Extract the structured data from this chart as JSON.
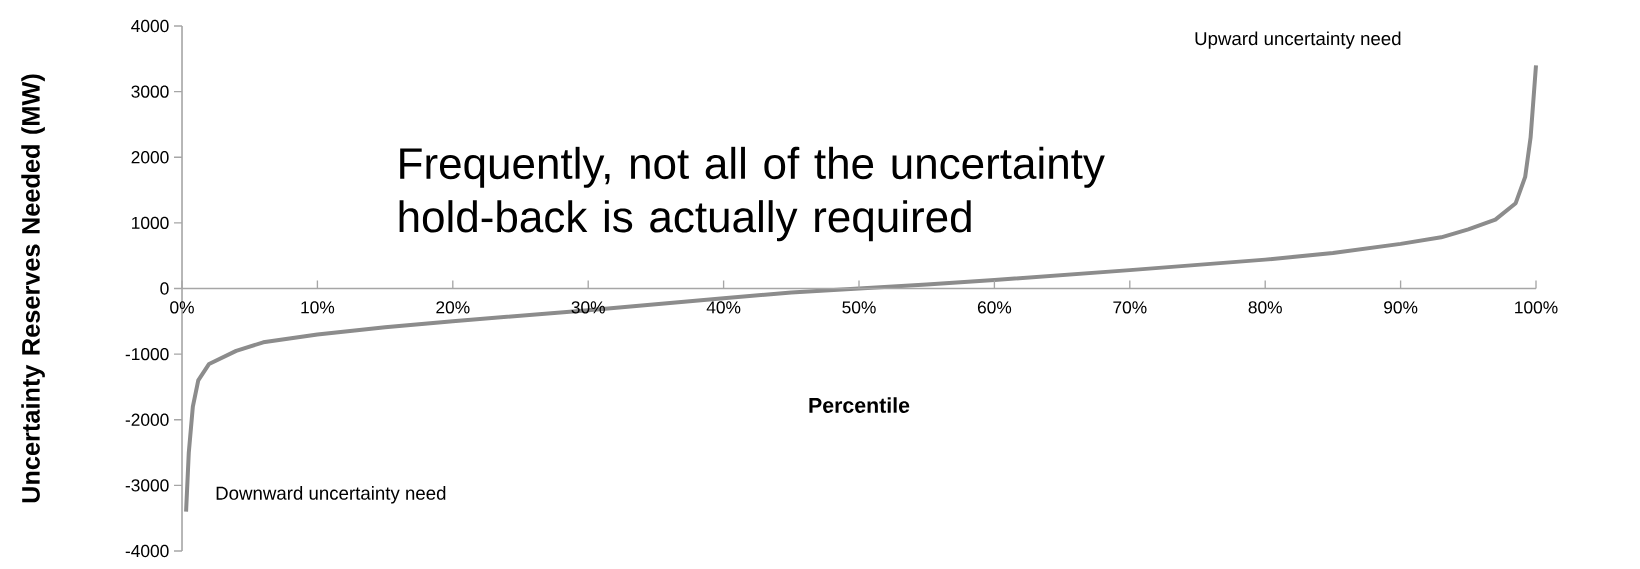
{
  "chart_data": {
    "type": "line",
    "xlabel": "Percentile",
    "ylabel": "Uncertainty Reserves Needed (MW)",
    "annotations": [
      "Frequently, not all of the uncertainty hold-back is actually required",
      "Upward uncertainty need",
      "Downward uncertainty need"
    ],
    "x": [
      0.3,
      0.5,
      0.8,
      1.2,
      2,
      4,
      6,
      10,
      15,
      20,
      30,
      40,
      45,
      50,
      55,
      60,
      70,
      80,
      85,
      90,
      93,
      95,
      97,
      98.5,
      99.2,
      99.6,
      100
    ],
    "series": [
      {
        "color": "#8c8c8c",
        "values": [
          -3400,
          -2500,
          -1800,
          -1400,
          -1150,
          -950,
          -820,
          -700,
          -590,
          -500,
          -330,
          -150,
          -60,
          0,
          60,
          130,
          280,
          440,
          540,
          680,
          780,
          900,
          1050,
          1300,
          1700,
          2300,
          3400
        ]
      }
    ],
    "xlim": [
      0,
      100
    ],
    "ylim": [
      -4000,
      4000
    ],
    "xticks": [
      {
        "value": 0,
        "label": "0%"
      },
      {
        "value": 10,
        "label": "10%"
      },
      {
        "value": 20,
        "label": "20%"
      },
      {
        "value": 30,
        "label": "30%"
      },
      {
        "value": 40,
        "label": "40%"
      },
      {
        "value": 50,
        "label": "50%"
      },
      {
        "value": 60,
        "label": "60%"
      },
      {
        "value": 70,
        "label": "70%"
      },
      {
        "value": 80,
        "label": "80%"
      },
      {
        "value": 90,
        "label": "90%"
      },
      {
        "value": 100,
        "label": "100%"
      }
    ],
    "yticks": [
      -4000,
      -3000,
      -2000,
      -1000,
      0,
      1000,
      2000,
      3000,
      4000
    ],
    "grid": false,
    "marker": "none",
    "line_style": "solid"
  }
}
